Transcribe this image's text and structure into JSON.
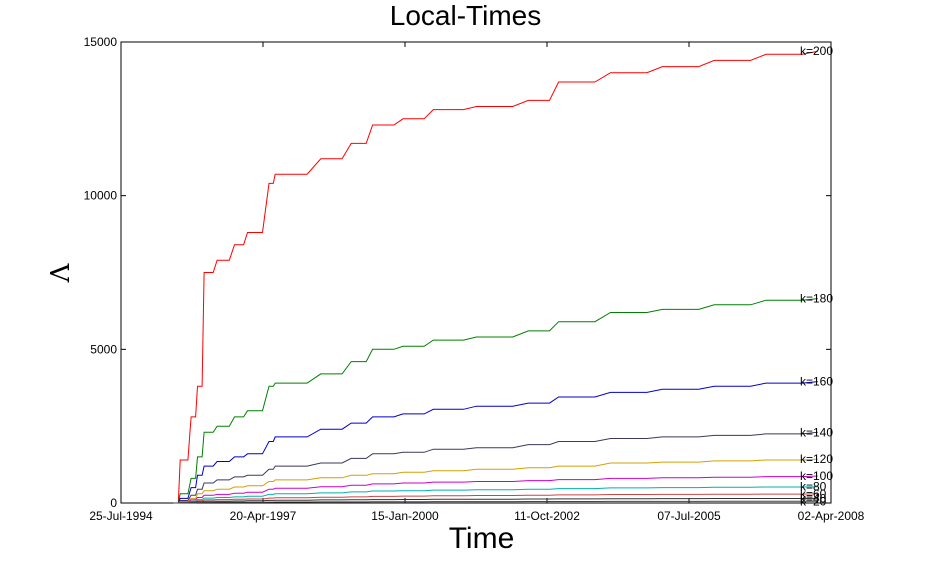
{
  "chart_data": {
    "type": "line",
    "title": "Local-Times",
    "xlabel": "Time",
    "ylabel": "Λ",
    "ylim": [
      0,
      15000
    ],
    "xlim": [
      "1994-07-25",
      "2008-04-02"
    ],
    "yticks": [
      0,
      5000,
      10000,
      15000
    ],
    "ytick_labels": [
      "0",
      "5000",
      "10000",
      "15000"
    ],
    "xticks": [
      "1994-07-25",
      "1997-04-20",
      "2000-01-15",
      "2002-10-11",
      "2005-07-07",
      "2008-04-02"
    ],
    "xtick_labels": [
      "25-Jul-1994",
      "20-Apr-1997",
      "15-Jan-2000",
      "11-Oct-2002",
      "07-Jul-2005",
      "02-Apr-2008"
    ],
    "grid": false,
    "x": [
      "1995-08-01",
      "1995-09-15",
      "1995-12-01",
      "1996-01-15",
      "1996-03-01",
      "1996-06-01",
      "1996-10-01",
      "1997-01-01",
      "1997-06-01",
      "1997-07-15",
      "1998-06-01",
      "1999-01-01",
      "1999-06-01",
      "2000-01-01",
      "2000-08-01",
      "2001-06-01",
      "2002-06-01",
      "2003-01-01",
      "2004-01-01",
      "2005-01-01",
      "2006-01-01",
      "2007-01-01",
      "2007-12-31"
    ],
    "series": [
      {
        "name": "k=200",
        "color": "#ff0000",
        "values": [
          0,
          1400,
          2800,
          3800,
          7500,
          7900,
          8400,
          8800,
          10400,
          10700,
          11200,
          11700,
          12300,
          12500,
          12800,
          12900,
          13100,
          13700,
          14000,
          14200,
          14400,
          14600,
          14700
        ]
      },
      {
        "name": "k=180",
        "color": "#008000",
        "values": [
          0,
          300,
          800,
          1500,
          2300,
          2500,
          2800,
          3000,
          3800,
          3900,
          4200,
          4600,
          5000,
          5100,
          5300,
          5400,
          5600,
          5900,
          6200,
          6300,
          6450,
          6600,
          6650
        ]
      },
      {
        "name": "k=160",
        "color": "#0000cc",
        "values": [
          0,
          150,
          500,
          900,
          1200,
          1350,
          1500,
          1600,
          2000,
          2150,
          2400,
          2600,
          2800,
          2900,
          3050,
          3150,
          3250,
          3450,
          3600,
          3700,
          3800,
          3900,
          3950
        ]
      },
      {
        "name": "k=140",
        "color": "#3a3a5a",
        "values": [
          0,
          80,
          250,
          450,
          650,
          750,
          850,
          900,
          1100,
          1200,
          1300,
          1450,
          1600,
          1650,
          1750,
          1800,
          1900,
          2000,
          2100,
          2150,
          2200,
          2250,
          2300
        ]
      },
      {
        "name": "k=120",
        "color": "#d4a000",
        "values": [
          0,
          50,
          150,
          300,
          400,
          450,
          520,
          560,
          700,
          750,
          820,
          900,
          950,
          1000,
          1050,
          1100,
          1150,
          1200,
          1300,
          1330,
          1370,
          1400,
          1430
        ]
      },
      {
        "name": "k=100",
        "color": "#cc00cc",
        "values": [
          0,
          30,
          100,
          180,
          250,
          280,
          320,
          350,
          450,
          480,
          530,
          580,
          620,
          650,
          680,
          700,
          730,
          760,
          800,
          820,
          840,
          860,
          880
        ]
      },
      {
        "name": "k=80",
        "color": "#00b0b0",
        "values": [
          0,
          20,
          60,
          110,
          160,
          180,
          200,
          220,
          280,
          300,
          330,
          360,
          390,
          400,
          420,
          430,
          450,
          470,
          490,
          500,
          510,
          520,
          530
        ]
      },
      {
        "name": "k=60",
        "color": "#cc4444",
        "values": [
          0,
          15,
          40,
          70,
          100,
          110,
          120,
          130,
          160,
          170,
          185,
          200,
          215,
          225,
          235,
          245,
          255,
          265,
          275,
          280,
          285,
          290,
          300
        ]
      },
      {
        "name": "k=40",
        "color": "#333333",
        "values": [
          0,
          10,
          25,
          40,
          55,
          60,
          65,
          70,
          85,
          90,
          100,
          105,
          110,
          115,
          120,
          125,
          130,
          135,
          140,
          142,
          145,
          147,
          150
        ]
      },
      {
        "name": "k=20",
        "color": "#444444",
        "values": [
          0,
          5,
          10,
          15,
          20,
          22,
          24,
          26,
          30,
          32,
          35,
          37,
          40,
          42,
          44,
          46,
          48,
          50,
          52,
          53,
          54,
          55,
          56
        ]
      }
    ]
  }
}
